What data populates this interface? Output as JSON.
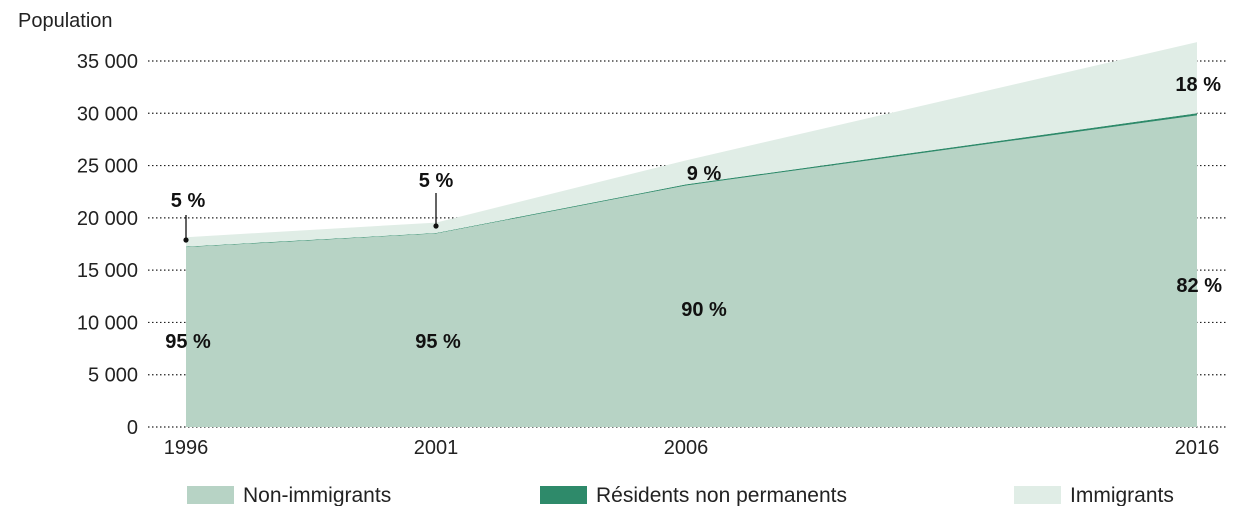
{
  "chart_data": {
    "type": "area",
    "stacked": true,
    "ylabel": "Population",
    "x": [
      1996,
      2001,
      2006,
      2016
    ],
    "x_tick_labels": [
      "1996",
      "2001",
      "2006",
      "2016"
    ],
    "y_tick_labels": [
      "0",
      "5 000",
      "10 000",
      "15 000",
      "20 000",
      "25 000",
      "30 000",
      "35 000"
    ],
    "y_ticks": [
      0,
      5000,
      10000,
      15000,
      20000,
      25000,
      30000,
      35000
    ],
    "ylim": [
      0,
      35000
    ],
    "grid": "horizontal dotted",
    "legend_position": "bottom",
    "series": [
      {
        "name": "Non-immigrants",
        "color": "#b7d3c5",
        "values": [
          17200,
          18500,
          23100,
          29800
        ]
      },
      {
        "name": "Résidents non permanents",
        "color": "#2e8a6a",
        "values": [
          50,
          50,
          100,
          200
        ]
      },
      {
        "name": "Immigrants",
        "color": "#e0ede6",
        "values": [
          900,
          1000,
          2300,
          6800
        ]
      }
    ],
    "annotations": [
      {
        "x": 1996,
        "label": "5 %",
        "series": "Immigrants"
      },
      {
        "x": 2001,
        "label": "5 %",
        "series": "Immigrants"
      },
      {
        "x": 2006,
        "label": "9 %",
        "series": "Immigrants"
      },
      {
        "x": 2016,
        "label": "18 %",
        "series": "Immigrants"
      },
      {
        "x": 1996,
        "label": "95 %",
        "series": "Non-immigrants"
      },
      {
        "x": 2001,
        "label": "95 %",
        "series": "Non-immigrants"
      },
      {
        "x": 2006,
        "label": "90 %",
        "series": "Non-immigrants"
      },
      {
        "x": 2016,
        "label": "82 %",
        "series": "Non-immigrants"
      }
    ]
  }
}
